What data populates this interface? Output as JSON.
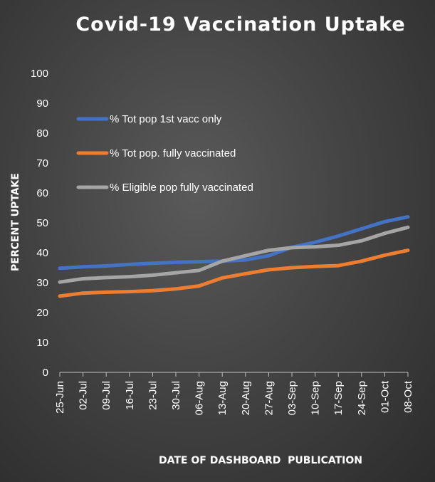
{
  "chart_data": {
    "type": "line",
    "title": "Covid-19 Vaccination Uptake",
    "xlabel": "DATE OF DASHBOARD  PUBLICATION",
    "ylabel": "PERCENT  UPTAKE",
    "ylim": [
      0,
      100
    ],
    "yticks": [
      0,
      10,
      20,
      30,
      40,
      50,
      60,
      70,
      80,
      90,
      100
    ],
    "grid": false,
    "legend_position": "upper-left",
    "categories": [
      "25-Jun",
      "02-Jul",
      "09-Jul",
      "16-Jul",
      "23-Jul",
      "30-Jul",
      "06-Aug",
      "13-Aug",
      "20-Aug",
      "27-Aug",
      "03-Sep",
      "10-Sep",
      "17-Sep",
      "24-Sep",
      "01-Oct",
      "08-Oct"
    ],
    "series": [
      {
        "name": "% Tot pop 1st vacc only",
        "color": "#4472c4",
        "values": [
          34.8,
          35.3,
          35.6,
          36.1,
          36.5,
          36.8,
          37.0,
          37.2,
          37.6,
          39.0,
          41.8,
          43.5,
          45.6,
          48.0,
          50.4,
          52.0
        ]
      },
      {
        "name": "% Tot pop. fully vaccinated",
        "color": "#ed7d31",
        "values": [
          25.5,
          26.5,
          26.8,
          27.0,
          27.3,
          27.9,
          28.9,
          31.6,
          33.0,
          34.3,
          35.0,
          35.4,
          35.7,
          37.2,
          39.2,
          40.8
        ]
      },
      {
        "name": "% Eligible pop fully vaccinated",
        "color": "#a5a5a5",
        "values": [
          30.2,
          31.3,
          31.7,
          32.0,
          32.5,
          33.3,
          34.1,
          37.2,
          39.0,
          40.8,
          41.7,
          42.0,
          42.5,
          44.0,
          46.5,
          48.5
        ]
      }
    ]
  }
}
